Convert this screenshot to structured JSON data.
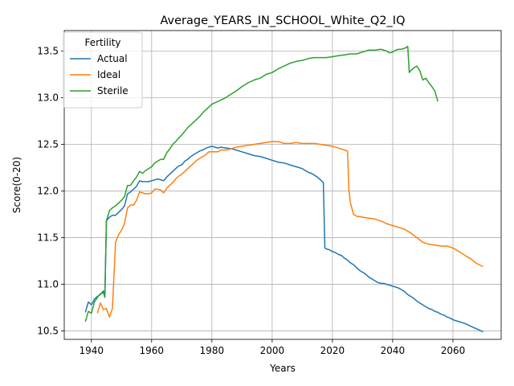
{
  "chart_data": {
    "type": "line",
    "title": "Average_YEARS_IN_SCHOOL_White_Q2_IQ",
    "xlabel": "Years",
    "ylabel": "Score(0-20)",
    "xlim": [
      1931,
      2076
    ],
    "ylim": [
      10.41,
      13.72
    ],
    "xticks": [
      1940,
      1960,
      1980,
      2000,
      2020,
      2040,
      2060
    ],
    "yticks": [
      10.5,
      11.0,
      11.5,
      12.0,
      12.5,
      13.0,
      13.5
    ],
    "ytick_labels": [
      "10.5",
      "11.0",
      "11.5",
      "12.0",
      "12.5",
      "13.0",
      "13.5"
    ],
    "grid": true,
    "legend": {
      "title": "Fertility",
      "position": "top-left"
    },
    "series": [
      {
        "name": "Actual",
        "color": "#1f77b4",
        "points": [
          [
            1938,
            10.7
          ],
          [
            1939,
            10.81
          ],
          [
            1940,
            10.78
          ],
          [
            1941,
            10.84
          ],
          [
            1942,
            10.87
          ],
          [
            1943,
            10.89
          ],
          [
            1944,
            10.93
          ],
          [
            1944.5,
            10.9
          ],
          [
            1945,
            11.68
          ],
          [
            1946,
            11.72
          ],
          [
            1947,
            11.74
          ],
          [
            1948,
            11.74
          ],
          [
            1949,
            11.77
          ],
          [
            1950,
            11.8
          ],
          [
            1951,
            11.84
          ],
          [
            1952,
            11.97
          ],
          [
            1953,
            11.99
          ],
          [
            1954,
            12.02
          ],
          [
            1955,
            12.05
          ],
          [
            1956,
            12.11
          ],
          [
            1957,
            12.1
          ],
          [
            1958,
            12.1
          ],
          [
            1959,
            12.1
          ],
          [
            1960,
            12.11
          ],
          [
            1962,
            12.13
          ],
          [
            1963,
            12.12
          ],
          [
            1964,
            12.11
          ],
          [
            1965,
            12.15
          ],
          [
            1966,
            12.18
          ],
          [
            1967,
            12.21
          ],
          [
            1968,
            12.24
          ],
          [
            1969,
            12.27
          ],
          [
            1970,
            12.28
          ],
          [
            1971,
            12.32
          ],
          [
            1972,
            12.34
          ],
          [
            1973,
            12.37
          ],
          [
            1974,
            12.39
          ],
          [
            1975,
            12.41
          ],
          [
            1976,
            12.43
          ],
          [
            1977,
            12.44
          ],
          [
            1978,
            12.46
          ],
          [
            1980,
            12.48
          ],
          [
            1981,
            12.47
          ],
          [
            1982,
            12.46
          ],
          [
            1983,
            12.47
          ],
          [
            1985,
            12.46
          ],
          [
            1987,
            12.45
          ],
          [
            1988,
            12.44
          ],
          [
            1990,
            12.42
          ],
          [
            1992,
            12.4
          ],
          [
            1994,
            12.38
          ],
          [
            1996,
            12.37
          ],
          [
            1998,
            12.35
          ],
          [
            2000,
            12.33
          ],
          [
            2002,
            12.31
          ],
          [
            2004,
            12.3
          ],
          [
            2006,
            12.28
          ],
          [
            2008,
            12.26
          ],
          [
            2010,
            12.24
          ],
          [
            2011,
            12.22
          ],
          [
            2012,
            12.2
          ],
          [
            2013,
            12.19
          ],
          [
            2014,
            12.17
          ],
          [
            2015,
            12.15
          ],
          [
            2016,
            12.12
          ],
          [
            2017,
            12.09
          ],
          [
            2017.5,
            11.39
          ],
          [
            2018,
            11.38
          ],
          [
            2019,
            11.37
          ],
          [
            2020,
            11.35
          ],
          [
            2021,
            11.34
          ],
          [
            2022,
            11.32
          ],
          [
            2023,
            11.31
          ],
          [
            2024,
            11.28
          ],
          [
            2025,
            11.26
          ],
          [
            2026,
            11.23
          ],
          [
            2027,
            11.21
          ],
          [
            2028,
            11.18
          ],
          [
            2029,
            11.15
          ],
          [
            2030,
            11.13
          ],
          [
            2031,
            11.11
          ],
          [
            2032,
            11.08
          ],
          [
            2033,
            11.06
          ],
          [
            2034,
            11.04
          ],
          [
            2035,
            11.02
          ],
          [
            2036,
            11.01
          ],
          [
            2037,
            11.01
          ],
          [
            2038,
            11.0
          ],
          [
            2039,
            10.99
          ],
          [
            2040,
            10.98
          ],
          [
            2041,
            10.97
          ],
          [
            2042,
            10.96
          ],
          [
            2043,
            10.94
          ],
          [
            2044,
            10.92
          ],
          [
            2045,
            10.89
          ],
          [
            2046,
            10.87
          ],
          [
            2047,
            10.85
          ],
          [
            2048,
            10.82
          ],
          [
            2049,
            10.8
          ],
          [
            2050,
            10.78
          ],
          [
            2051,
            10.76
          ],
          [
            2052,
            10.74
          ],
          [
            2053,
            10.73
          ],
          [
            2054,
            10.71
          ],
          [
            2055,
            10.7
          ],
          [
            2056,
            10.68
          ],
          [
            2057,
            10.67
          ],
          [
            2058,
            10.65
          ],
          [
            2059,
            10.64
          ],
          [
            2060,
            10.62
          ],
          [
            2062,
            10.6
          ],
          [
            2064,
            10.58
          ],
          [
            2066,
            10.55
          ],
          [
            2068,
            10.52
          ],
          [
            2070,
            10.49
          ]
        ]
      },
      {
        "name": "Ideal",
        "color": "#ff7f0e",
        "points": [
          [
            1942,
            10.69
          ],
          [
            1943,
            10.8
          ],
          [
            1944,
            10.73
          ],
          [
            1945,
            10.74
          ],
          [
            1946,
            10.65
          ],
          [
            1947,
            10.74
          ],
          [
            1948,
            11.45
          ],
          [
            1949,
            11.53
          ],
          [
            1950,
            11.58
          ],
          [
            1951,
            11.65
          ],
          [
            1952,
            11.82
          ],
          [
            1953,
            11.85
          ],
          [
            1954,
            11.85
          ],
          [
            1955,
            11.9
          ],
          [
            1956,
            11.99
          ],
          [
            1957,
            11.98
          ],
          [
            1958,
            11.97
          ],
          [
            1959,
            11.97
          ],
          [
            1960,
            11.98
          ],
          [
            1961,
            12.02
          ],
          [
            1962,
            12.02
          ],
          [
            1963,
            12.01
          ],
          [
            1964,
            11.98
          ],
          [
            1965,
            12.03
          ],
          [
            1966,
            12.06
          ],
          [
            1967,
            12.09
          ],
          [
            1968,
            12.13
          ],
          [
            1969,
            12.16
          ],
          [
            1970,
            12.18
          ],
          [
            1971,
            12.21
          ],
          [
            1972,
            12.24
          ],
          [
            1973,
            12.27
          ],
          [
            1974,
            12.3
          ],
          [
            1975,
            12.33
          ],
          [
            1976,
            12.35
          ],
          [
            1977,
            12.37
          ],
          [
            1978,
            12.39
          ],
          [
            1979,
            12.42
          ],
          [
            1980,
            12.42
          ],
          [
            1981,
            12.42
          ],
          [
            1982,
            12.42
          ],
          [
            1983,
            12.44
          ],
          [
            1985,
            12.44
          ],
          [
            1987,
            12.46
          ],
          [
            1988,
            12.47
          ],
          [
            1990,
            12.48
          ],
          [
            1992,
            12.49
          ],
          [
            1994,
            12.5
          ],
          [
            1996,
            12.51
          ],
          [
            1998,
            12.52
          ],
          [
            2000,
            12.53
          ],
          [
            2002,
            12.53
          ],
          [
            2003,
            12.52
          ],
          [
            2004,
            12.51
          ],
          [
            2006,
            12.51
          ],
          [
            2008,
            12.52
          ],
          [
            2010,
            12.51
          ],
          [
            2012,
            12.51
          ],
          [
            2014,
            12.51
          ],
          [
            2016,
            12.5
          ],
          [
            2018,
            12.49
          ],
          [
            2020,
            12.48
          ],
          [
            2022,
            12.46
          ],
          [
            2024,
            12.44
          ],
          [
            2025,
            12.43
          ],
          [
            2025.5,
            12.0
          ],
          [
            2026,
            11.87
          ],
          [
            2027,
            11.75
          ],
          [
            2028,
            11.73
          ],
          [
            2030,
            11.72
          ],
          [
            2032,
            11.71
          ],
          [
            2034,
            11.7
          ],
          [
            2036,
            11.68
          ],
          [
            2038,
            11.65
          ],
          [
            2040,
            11.63
          ],
          [
            2042,
            11.61
          ],
          [
            2044,
            11.59
          ],
          [
            2046,
            11.55
          ],
          [
            2048,
            11.5
          ],
          [
            2050,
            11.45
          ],
          [
            2052,
            11.43
          ],
          [
            2054,
            11.42
          ],
          [
            2056,
            11.41
          ],
          [
            2058,
            11.41
          ],
          [
            2060,
            11.39
          ],
          [
            2062,
            11.35
          ],
          [
            2064,
            11.31
          ],
          [
            2066,
            11.27
          ],
          [
            2068,
            11.22
          ],
          [
            2070,
            11.19
          ]
        ]
      },
      {
        "name": "Sterile",
        "color": "#2ca02c",
        "points": [
          [
            1938,
            10.6
          ],
          [
            1939,
            10.71
          ],
          [
            1940,
            10.69
          ],
          [
            1941,
            10.81
          ],
          [
            1942,
            10.86
          ],
          [
            1943,
            10.9
          ],
          [
            1944,
            10.91
          ],
          [
            1944.5,
            10.86
          ],
          [
            1945,
            11.68
          ],
          [
            1946,
            11.79
          ],
          [
            1947,
            11.82
          ],
          [
            1948,
            11.84
          ],
          [
            1949,
            11.87
          ],
          [
            1950,
            11.9
          ],
          [
            1951,
            11.94
          ],
          [
            1952,
            12.06
          ],
          [
            1953,
            12.06
          ],
          [
            1954,
            12.11
          ],
          [
            1955,
            12.15
          ],
          [
            1956,
            12.21
          ],
          [
            1957,
            12.19
          ],
          [
            1958,
            12.22
          ],
          [
            1959,
            12.24
          ],
          [
            1960,
            12.26
          ],
          [
            1961,
            12.3
          ],
          [
            1962,
            12.32
          ],
          [
            1963,
            12.34
          ],
          [
            1964,
            12.34
          ],
          [
            1965,
            12.41
          ],
          [
            1966,
            12.45
          ],
          [
            1967,
            12.5
          ],
          [
            1968,
            12.53
          ],
          [
            1969,
            12.57
          ],
          [
            1970,
            12.6
          ],
          [
            1971,
            12.64
          ],
          [
            1972,
            12.68
          ],
          [
            1973,
            12.71
          ],
          [
            1974,
            12.74
          ],
          [
            1975,
            12.77
          ],
          [
            1976,
            12.8
          ],
          [
            1977,
            12.84
          ],
          [
            1978,
            12.87
          ],
          [
            1979,
            12.9
          ],
          [
            1980,
            12.93
          ],
          [
            1982,
            12.96
          ],
          [
            1984,
            12.99
          ],
          [
            1986,
            13.03
          ],
          [
            1988,
            13.07
          ],
          [
            1990,
            13.12
          ],
          [
            1992,
            13.16
          ],
          [
            1994,
            13.19
          ],
          [
            1996,
            13.21
          ],
          [
            1998,
            13.25
          ],
          [
            2000,
            13.27
          ],
          [
            2002,
            13.31
          ],
          [
            2004,
            13.34
          ],
          [
            2006,
            13.37
          ],
          [
            2008,
            13.39
          ],
          [
            2010,
            13.4
          ],
          [
            2012,
            13.42
          ],
          [
            2014,
            13.43
          ],
          [
            2016,
            13.43
          ],
          [
            2018,
            13.43
          ],
          [
            2020,
            13.44
          ],
          [
            2022,
            13.45
          ],
          [
            2024,
            13.46
          ],
          [
            2026,
            13.47
          ],
          [
            2028,
            13.47
          ],
          [
            2030,
            13.49
          ],
          [
            2032,
            13.51
          ],
          [
            2034,
            13.51
          ],
          [
            2036,
            13.52
          ],
          [
            2038,
            13.5
          ],
          [
            2039,
            13.48
          ],
          [
            2040,
            13.49
          ],
          [
            2041,
            13.51
          ],
          [
            2042,
            13.52
          ],
          [
            2043,
            13.52
          ],
          [
            2044,
            13.53
          ],
          [
            2045,
            13.55
          ],
          [
            2045.5,
            13.27
          ],
          [
            2046,
            13.29
          ],
          [
            2047,
            13.32
          ],
          [
            2048,
            13.34
          ],
          [
            2049,
            13.29
          ],
          [
            2050,
            13.19
          ],
          [
            2051,
            13.21
          ],
          [
            2052,
            13.16
          ],
          [
            2053,
            13.12
          ],
          [
            2054,
            13.07
          ],
          [
            2055,
            12.96
          ]
        ]
      }
    ]
  }
}
